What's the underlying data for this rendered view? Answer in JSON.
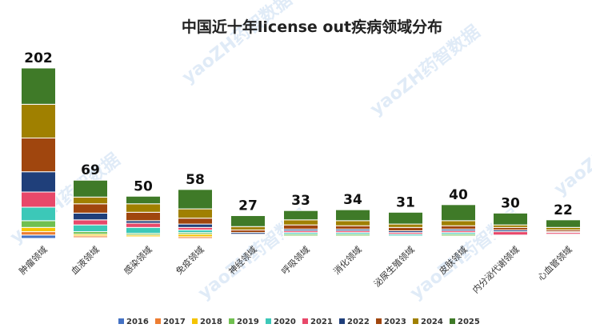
{
  "chart_data": {
    "type": "bar",
    "stacked": true,
    "title": "中国近十年license out疾病领域分布",
    "categories": [
      "肿瘤领域",
      "血液领域",
      "感染领域",
      "免疫领域",
      "神经领域",
      "呼吸领域",
      "消化领域",
      "泌尿生殖领域",
      "皮肤领域",
      "内分泌代谢领域",
      "心血管领域"
    ],
    "totals": [
      202,
      69,
      50,
      58,
      27,
      33,
      34,
      31,
      40,
      30,
      22
    ],
    "ylim": [
      0,
      210
    ],
    "legend_position": "bottom",
    "series": [
      {
        "name": "2016",
        "color": "#4472c4",
        "values": [
          4,
          1,
          1,
          0,
          0,
          1,
          1,
          0,
          1,
          0,
          1
        ]
      },
      {
        "name": "2017",
        "color": "#ed7d31",
        "values": [
          4,
          2,
          1,
          2,
          1,
          1,
          1,
          1,
          1,
          1,
          1
        ]
      },
      {
        "name": "2018",
        "color": "#f5c400",
        "values": [
          5,
          2,
          2,
          3,
          1,
          1,
          1,
          1,
          1,
          1,
          1
        ]
      },
      {
        "name": "2019",
        "color": "#70c050",
        "values": [
          8,
          3,
          2,
          2,
          1,
          2,
          2,
          1,
          2,
          1,
          1
        ]
      },
      {
        "name": "2020",
        "color": "#3cc8b8",
        "values": [
          16,
          8,
          7,
          3,
          1,
          2,
          2,
          2,
          2,
          1,
          1
        ]
      },
      {
        "name": "2021",
        "color": "#e8486a",
        "values": [
          18,
          6,
          5,
          3,
          1,
          2,
          2,
          2,
          2,
          4,
          2
        ]
      },
      {
        "name": "2022",
        "color": "#1f3f7a",
        "values": [
          24,
          8,
          3,
          4,
          2,
          2,
          2,
          2,
          2,
          2,
          1
        ]
      },
      {
        "name": "2023",
        "color": "#a0460e",
        "values": [
          40,
          11,
          10,
          7,
          3,
          5,
          4,
          4,
          4,
          3,
          2
        ]
      },
      {
        "name": "2024",
        "color": "#a08000",
        "values": [
          40,
          8,
          10,
          11,
          4,
          6,
          6,
          4,
          6,
          3,
          3
        ]
      },
      {
        "name": "2025",
        "color": "#3f7a28",
        "values": [
          43,
          20,
          9,
          23,
          13,
          11,
          13,
          14,
          19,
          14,
          9
        ]
      }
    ]
  },
  "watermark": "yaoZH药智数据"
}
